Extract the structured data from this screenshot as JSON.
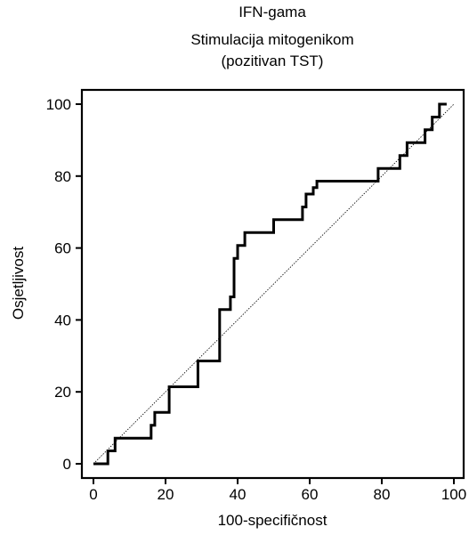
{
  "chart_data": {
    "type": "line",
    "title_lines": [
      "IFN-gama",
      "Stimulacija mitogenikom",
      "(pozitivan TST)"
    ],
    "xlabel": "100-specifičnost",
    "ylabel": "Osjetljivost",
    "xlim": [
      0,
      100
    ],
    "ylim": [
      0,
      100
    ],
    "xticks": [
      0,
      20,
      40,
      60,
      80,
      100
    ],
    "yticks": [
      0,
      20,
      40,
      60,
      80,
      100
    ],
    "grid": false,
    "series": [
      {
        "style": "step",
        "x": [
          0,
          4,
          4,
          6,
          6,
          16,
          16,
          17,
          17,
          21,
          21,
          29,
          29,
          35,
          35,
          38,
          38,
          39,
          39,
          40,
          40,
          42,
          42,
          50,
          50,
          58,
          58,
          59,
          59,
          61,
          61,
          62,
          62,
          79,
          79,
          85,
          85,
          87,
          87,
          92,
          92,
          94,
          94,
          96,
          96,
          98
        ],
        "y": [
          0,
          0,
          3.6,
          3.6,
          7.1,
          7.1,
          10.7,
          10.7,
          14.3,
          14.3,
          21.4,
          21.4,
          28.6,
          28.6,
          42.9,
          42.9,
          46.4,
          46.4,
          57.1,
          57.1,
          60.7,
          60.7,
          64.3,
          64.3,
          67.9,
          67.9,
          71.4,
          71.4,
          75.0,
          75.0,
          76.8,
          76.8,
          78.6,
          78.6,
          82.1,
          82.1,
          85.7,
          85.7,
          89.3,
          89.3,
          92.9,
          92.9,
          96.4,
          96.4,
          100,
          100
        ]
      },
      {
        "style": "diagonal-reference",
        "x": [
          0,
          100
        ],
        "y": [
          0,
          100
        ]
      }
    ]
  }
}
